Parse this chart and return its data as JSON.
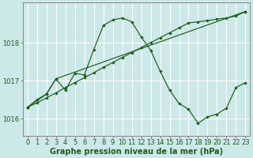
{
  "background_color": "#cde8e8",
  "plot_bg_color": "#cde8e8",
  "grid_color": "#ffffff",
  "line_color": "#1e5c1e",
  "xlabel": "Graphe pression niveau de la mer (hPa)",
  "ylim": [
    1015.55,
    1019.05
  ],
  "xlim": [
    -0.5,
    23.5
  ],
  "yticks": [
    1016,
    1017,
    1018
  ],
  "xticks": [
    0,
    1,
    2,
    3,
    4,
    5,
    6,
    7,
    8,
    9,
    10,
    11,
    12,
    13,
    14,
    15,
    16,
    17,
    18,
    19,
    20,
    21,
    22,
    23
  ],
  "series1_x": [
    0,
    1,
    2,
    3,
    4,
    5,
    6,
    7,
    8,
    9,
    10,
    11,
    12,
    13,
    14,
    15,
    16,
    17,
    18,
    19,
    20,
    21,
    22,
    23
  ],
  "series1_y": [
    1016.3,
    1016.42,
    1016.55,
    1016.68,
    1016.82,
    1016.95,
    1017.08,
    1017.21,
    1017.35,
    1017.48,
    1017.61,
    1017.74,
    1017.87,
    1018.0,
    1018.13,
    1018.26,
    1018.39,
    1018.52,
    1018.55,
    1018.58,
    1018.62,
    1018.65,
    1018.7,
    1018.82
  ],
  "series2_x": [
    0,
    1,
    2,
    3,
    4,
    5,
    6,
    7,
    8,
    9,
    10,
    11,
    12,
    13,
    14,
    15,
    16,
    17,
    18,
    19,
    20,
    21,
    22,
    23
  ],
  "series2_y": [
    1016.3,
    1016.5,
    1016.65,
    1017.05,
    1016.75,
    1017.2,
    1017.15,
    1017.82,
    1018.45,
    1018.6,
    1018.65,
    1018.55,
    1018.15,
    1017.8,
    1017.25,
    1016.75,
    1016.4,
    1016.25,
    1015.88,
    1016.05,
    1016.12,
    1016.28,
    1016.82,
    1016.95
  ],
  "series3_x": [
    0,
    2,
    3,
    23
  ],
  "series3_y": [
    1016.3,
    1016.65,
    1017.05,
    1018.82
  ],
  "title_fontsize": 7.5,
  "tick_fontsize": 6,
  "xlabel_fontsize": 7
}
